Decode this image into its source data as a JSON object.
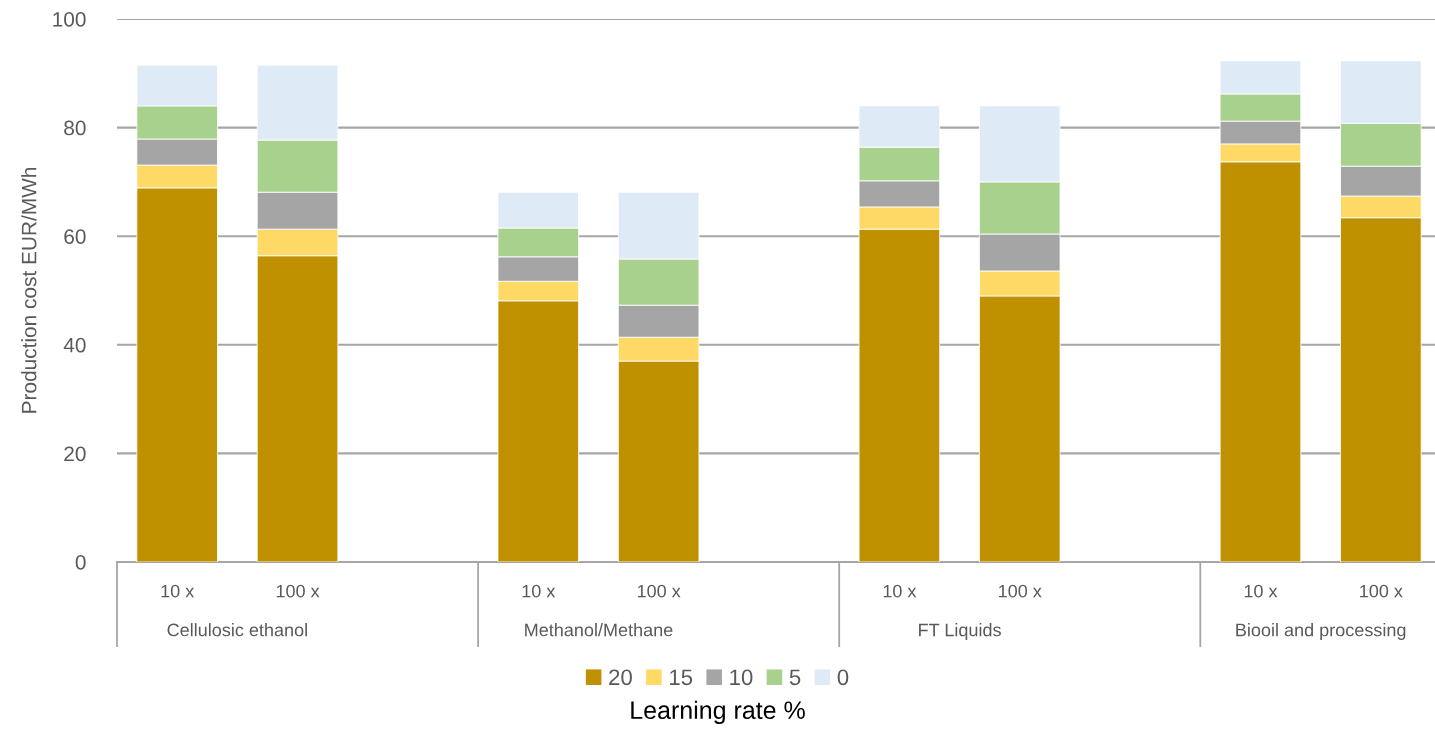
{
  "chart_data": {
    "type": "bar",
    "stacked": true,
    "ylabel": "Production cost EUR/MWh",
    "legend_title": "Learning rate %",
    "legend": "bottom",
    "grid": "y",
    "categories": [
      "10 x",
      "100 x",
      null,
      "10 x",
      "100 x",
      null,
      "10 x",
      "100 x",
      null,
      "10 x",
      "100 x"
    ],
    "annotations": [
      "Cellulosic ethanol",
      "Methanol/Methane",
      "FT Liquids",
      "Biooil and processing"
    ],
    "ylim": [
      0,
      100
    ],
    "yticks": [
      0,
      20,
      40,
      60,
      80,
      100
    ],
    "series": [
      {
        "name": "20",
        "color": "#bf9000",
        "values": [
          68.9,
          56.4,
          null,
          48.1,
          37.0,
          null,
          61.3,
          49.0,
          null,
          73.7,
          63.4
        ]
      },
      {
        "name": "15",
        "color": "#ffd966",
        "values": [
          4.2,
          4.9,
          null,
          3.6,
          4.4,
          null,
          4.1,
          4.6,
          null,
          3.3,
          4.0
        ]
      },
      {
        "name": "10",
        "color": "#a5a5a5",
        "values": [
          4.8,
          6.8,
          null,
          4.5,
          5.9,
          null,
          4.8,
          6.8,
          null,
          4.2,
          5.5
        ]
      },
      {
        "name": "5",
        "color": "#a9d18e",
        "values": [
          6.1,
          9.6,
          null,
          5.3,
          8.5,
          null,
          6.2,
          9.6,
          null,
          5.0,
          7.9
        ]
      },
      {
        "name": "0",
        "color": "#deebf7",
        "values": [
          7.5,
          13.8,
          null,
          6.6,
          12.3,
          null,
          7.6,
          14.0,
          null,
          6.1,
          11.5
        ]
      }
    ]
  }
}
